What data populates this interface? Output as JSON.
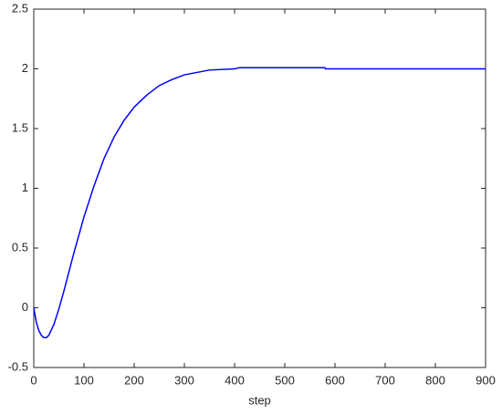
{
  "chart_data": {
    "type": "line",
    "x_label": "step",
    "x": [
      0,
      5,
      10,
      15,
      20,
      25,
      30,
      40,
      50,
      60,
      70,
      80,
      100,
      120,
      140,
      160,
      180,
      200,
      225,
      250,
      275,
      300,
      350,
      400,
      410,
      580,
      581,
      900
    ],
    "series": [
      {
        "color": "#0000ff",
        "values": [
          0,
          -0.12,
          -0.19,
          -0.23,
          -0.25,
          -0.25,
          -0.23,
          -0.14,
          -0.01,
          0.14,
          0.3,
          0.46,
          0.76,
          1.02,
          1.25,
          1.43,
          1.57,
          1.68,
          1.78,
          1.86,
          1.91,
          1.95,
          1.99,
          2.0,
          2.01,
          2.01,
          2.0,
          2.0
        ]
      }
    ],
    "xlim": [
      0,
      900
    ],
    "xticks": [
      0,
      100,
      200,
      300,
      400,
      500,
      600,
      700,
      800,
      900
    ],
    "ylim": [
      -0.5,
      2.5
    ],
    "yticks": [
      -0.5,
      0,
      0.5,
      1,
      1.5,
      2,
      2.5
    ],
    "grid": false
  }
}
